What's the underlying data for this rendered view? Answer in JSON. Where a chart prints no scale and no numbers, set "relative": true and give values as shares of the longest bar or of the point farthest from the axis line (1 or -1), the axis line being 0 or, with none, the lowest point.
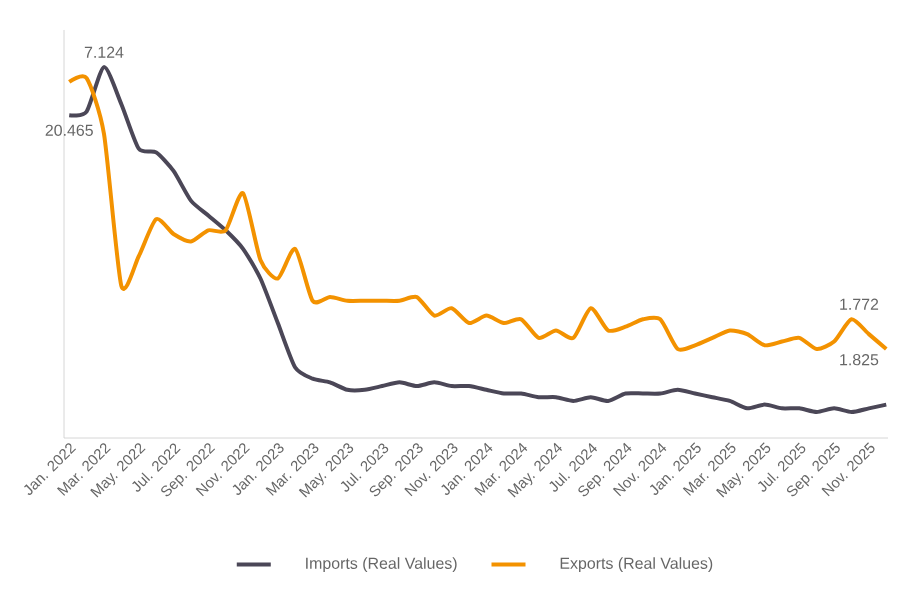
{
  "chart_data": {
    "type": "line",
    "relative": true,
    "categories": [
      "Jan. 2022",
      null,
      "Mar. 2022",
      null,
      "May. 2022",
      null,
      "Jul. 2022",
      null,
      "Sep. 2022",
      null,
      "Nov. 2022",
      null,
      "Jan. 2023",
      null,
      "Mar. 2023",
      null,
      "May. 2023",
      null,
      "Jul. 2023",
      null,
      "Sep. 2023",
      null,
      "Nov. 2023",
      null,
      "Jan. 2024",
      null,
      "Mar. 2024",
      null,
      "May. 2024",
      null,
      "Jul. 2024",
      null,
      "Sep. 2024",
      null,
      "Nov. 2024",
      null,
      "Jan. 2025",
      null,
      "Mar. 2025",
      null,
      "May. 2025",
      null,
      "Jul. 2025",
      null,
      "Sep. 2025",
      null,
      "Nov. 2025",
      null
    ],
    "series": [
      {
        "name": "Imports (Real Values)",
        "color": "#4b4757",
        "values": [
          0.87,
          0.88,
          1.0,
          0.9,
          0.78,
          0.77,
          0.72,
          0.64,
          0.6,
          0.56,
          0.51,
          0.43,
          0.31,
          0.19,
          0.16,
          0.15,
          0.13,
          0.13,
          0.14,
          0.15,
          0.14,
          0.15,
          0.14,
          0.14,
          0.13,
          0.12,
          0.12,
          0.11,
          0.11,
          0.1,
          0.11,
          0.1,
          0.12,
          0.12,
          0.12,
          0.13,
          0.12,
          0.11,
          0.1,
          0.08,
          0.09,
          0.08,
          0.08,
          0.07,
          0.08,
          0.07,
          0.08,
          0.09
        ]
      },
      {
        "name": "Exports (Real Values)",
        "color": "#f39200",
        "values": [
          0.96,
          0.97,
          0.82,
          0.41,
          0.49,
          0.59,
          0.55,
          0.53,
          0.56,
          0.56,
          0.66,
          0.48,
          0.43,
          0.51,
          0.37,
          0.38,
          0.37,
          0.37,
          0.37,
          0.37,
          0.38,
          0.33,
          0.35,
          0.31,
          0.33,
          0.31,
          0.32,
          0.27,
          0.29,
          0.27,
          0.35,
          0.29,
          0.3,
          0.32,
          0.32,
          0.24,
          0.25,
          0.27,
          0.29,
          0.28,
          0.25,
          0.26,
          0.27,
          0.24,
          0.26,
          0.32,
          0.28,
          0.24
        ]
      }
    ],
    "annotations": [
      {
        "text": "20.465",
        "x": "Jan. 2022",
        "y": 0.87
      },
      {
        "text": "7.124",
        "x": "Mar. 2022",
        "y": 1.0
      },
      "1.772",
      "1.825"
    ],
    "legend": "bottom",
    "grid": false,
    "line_style": "solid",
    "marker": "none"
  }
}
